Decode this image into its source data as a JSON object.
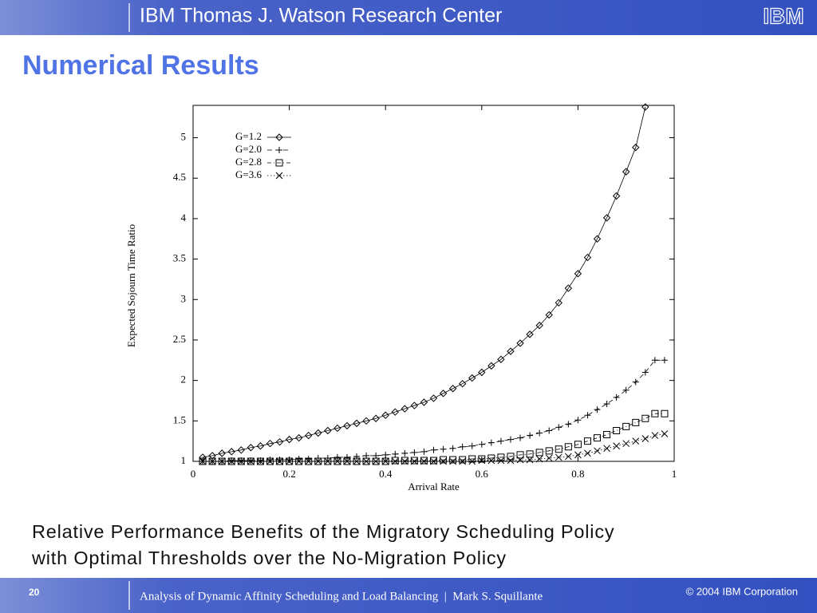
{
  "header": {
    "title": "IBM Thomas J. Watson Research Center",
    "logo": "IBM"
  },
  "slide_title": "Numerical Results",
  "caption": [
    "Relative Performance Benefits of the Migratory Scheduling Policy",
    "with Optimal Thresholds over the No-Migration Policy"
  ],
  "footer": {
    "page": "20",
    "text": "Analysis of Dynamic Affinity Scheduling and Load Balancing  |  Mark S. Squillante",
    "copyright": "© 2004 IBM Corporation"
  },
  "chart_data": {
    "type": "line",
    "x_label": "Arrival Rate",
    "y_label": "Expected Sojourn Time Ratio",
    "xlim": [
      0,
      1
    ],
    "ylim": [
      1,
      5.4
    ],
    "xticks": [
      0,
      0.2,
      0.4,
      0.6,
      0.8,
      1
    ],
    "yticks": [
      1,
      1.5,
      2,
      2.5,
      3,
      3.5,
      4,
      4.5,
      5
    ],
    "legend": "upper left",
    "x": [
      0.02,
      0.04,
      0.06,
      0.08,
      0.1,
      0.12,
      0.14,
      0.16,
      0.18,
      0.2,
      0.22,
      0.24,
      0.26,
      0.28,
      0.3,
      0.32,
      0.34,
      0.36,
      0.38,
      0.4,
      0.42,
      0.44,
      0.46,
      0.48,
      0.5,
      0.52,
      0.54,
      0.56,
      0.58,
      0.6,
      0.62,
      0.64,
      0.66,
      0.68,
      0.7,
      0.72,
      0.74,
      0.76,
      0.78,
      0.8,
      0.82,
      0.84,
      0.86,
      0.88,
      0.9,
      0.92,
      0.94,
      0.96,
      0.98
    ],
    "series": [
      {
        "name": "G=1.2",
        "color": "#000000",
        "marker": "diamond",
        "dash": "solid",
        "values": [
          1.05,
          1.07,
          1.1,
          1.12,
          1.14,
          1.17,
          1.19,
          1.22,
          1.24,
          1.27,
          1.29,
          1.32,
          1.35,
          1.38,
          1.41,
          1.44,
          1.47,
          1.5,
          1.53,
          1.57,
          1.61,
          1.65,
          1.69,
          1.73,
          1.78,
          1.84,
          1.9,
          1.96,
          2.03,
          2.1,
          2.18,
          2.26,
          2.36,
          2.46,
          2.57,
          2.68,
          2.81,
          2.96,
          3.14,
          3.32,
          3.52,
          3.75,
          4.01,
          4.28,
          4.58,
          4.88,
          5.38,
          null,
          null
        ]
      },
      {
        "name": "G=2.0",
        "color": "#000000",
        "marker": "plus",
        "dash": "dashed",
        "values": [
          1.0,
          1.0,
          1.0,
          1.01,
          1.01,
          1.01,
          1.01,
          1.02,
          1.02,
          1.02,
          1.03,
          1.03,
          1.04,
          1.04,
          1.05,
          1.05,
          1.06,
          1.07,
          1.07,
          1.08,
          1.09,
          1.1,
          1.11,
          1.12,
          1.14,
          1.15,
          1.16,
          1.18,
          1.19,
          1.21,
          1.23,
          1.25,
          1.27,
          1.29,
          1.32,
          1.35,
          1.38,
          1.42,
          1.46,
          1.51,
          1.57,
          1.64,
          1.71,
          1.79,
          1.88,
          1.98,
          2.1,
          2.25,
          2.25
        ]
      },
      {
        "name": "G=2.8",
        "color": "#000000",
        "marker": "square",
        "dash": "dashdot",
        "values": [
          1.0,
          1.0,
          1.0,
          1.0,
          1.0,
          1.0,
          1.0,
          1.0,
          1.0,
          1.0,
          1.0,
          1.0,
          1.0,
          1.0,
          1.0,
          1.0,
          1.0,
          1.0,
          1.0,
          1.0,
          1.01,
          1.01,
          1.01,
          1.01,
          1.01,
          1.02,
          1.02,
          1.02,
          1.03,
          1.03,
          1.04,
          1.05,
          1.06,
          1.08,
          1.09,
          1.11,
          1.13,
          1.15,
          1.18,
          1.21,
          1.25,
          1.29,
          1.33,
          1.38,
          1.43,
          1.48,
          1.53,
          1.59,
          1.59
        ]
      },
      {
        "name": "G=3.6",
        "color": "#000000",
        "marker": "cross",
        "dash": "dotted",
        "values": [
          1.0,
          1.0,
          1.0,
          1.0,
          1.0,
          1.0,
          1.0,
          1.0,
          1.0,
          1.0,
          1.0,
          1.0,
          1.0,
          1.0,
          1.0,
          1.0,
          1.0,
          1.0,
          1.0,
          1.0,
          1.0,
          1.0,
          1.0,
          1.0,
          1.0,
          1.0,
          1.0,
          1.0,
          1.0,
          1.01,
          1.01,
          1.01,
          1.01,
          1.02,
          1.02,
          1.03,
          1.04,
          1.05,
          1.06,
          1.08,
          1.1,
          1.13,
          1.16,
          1.19,
          1.22,
          1.25,
          1.28,
          1.32,
          1.34
        ]
      }
    ]
  }
}
